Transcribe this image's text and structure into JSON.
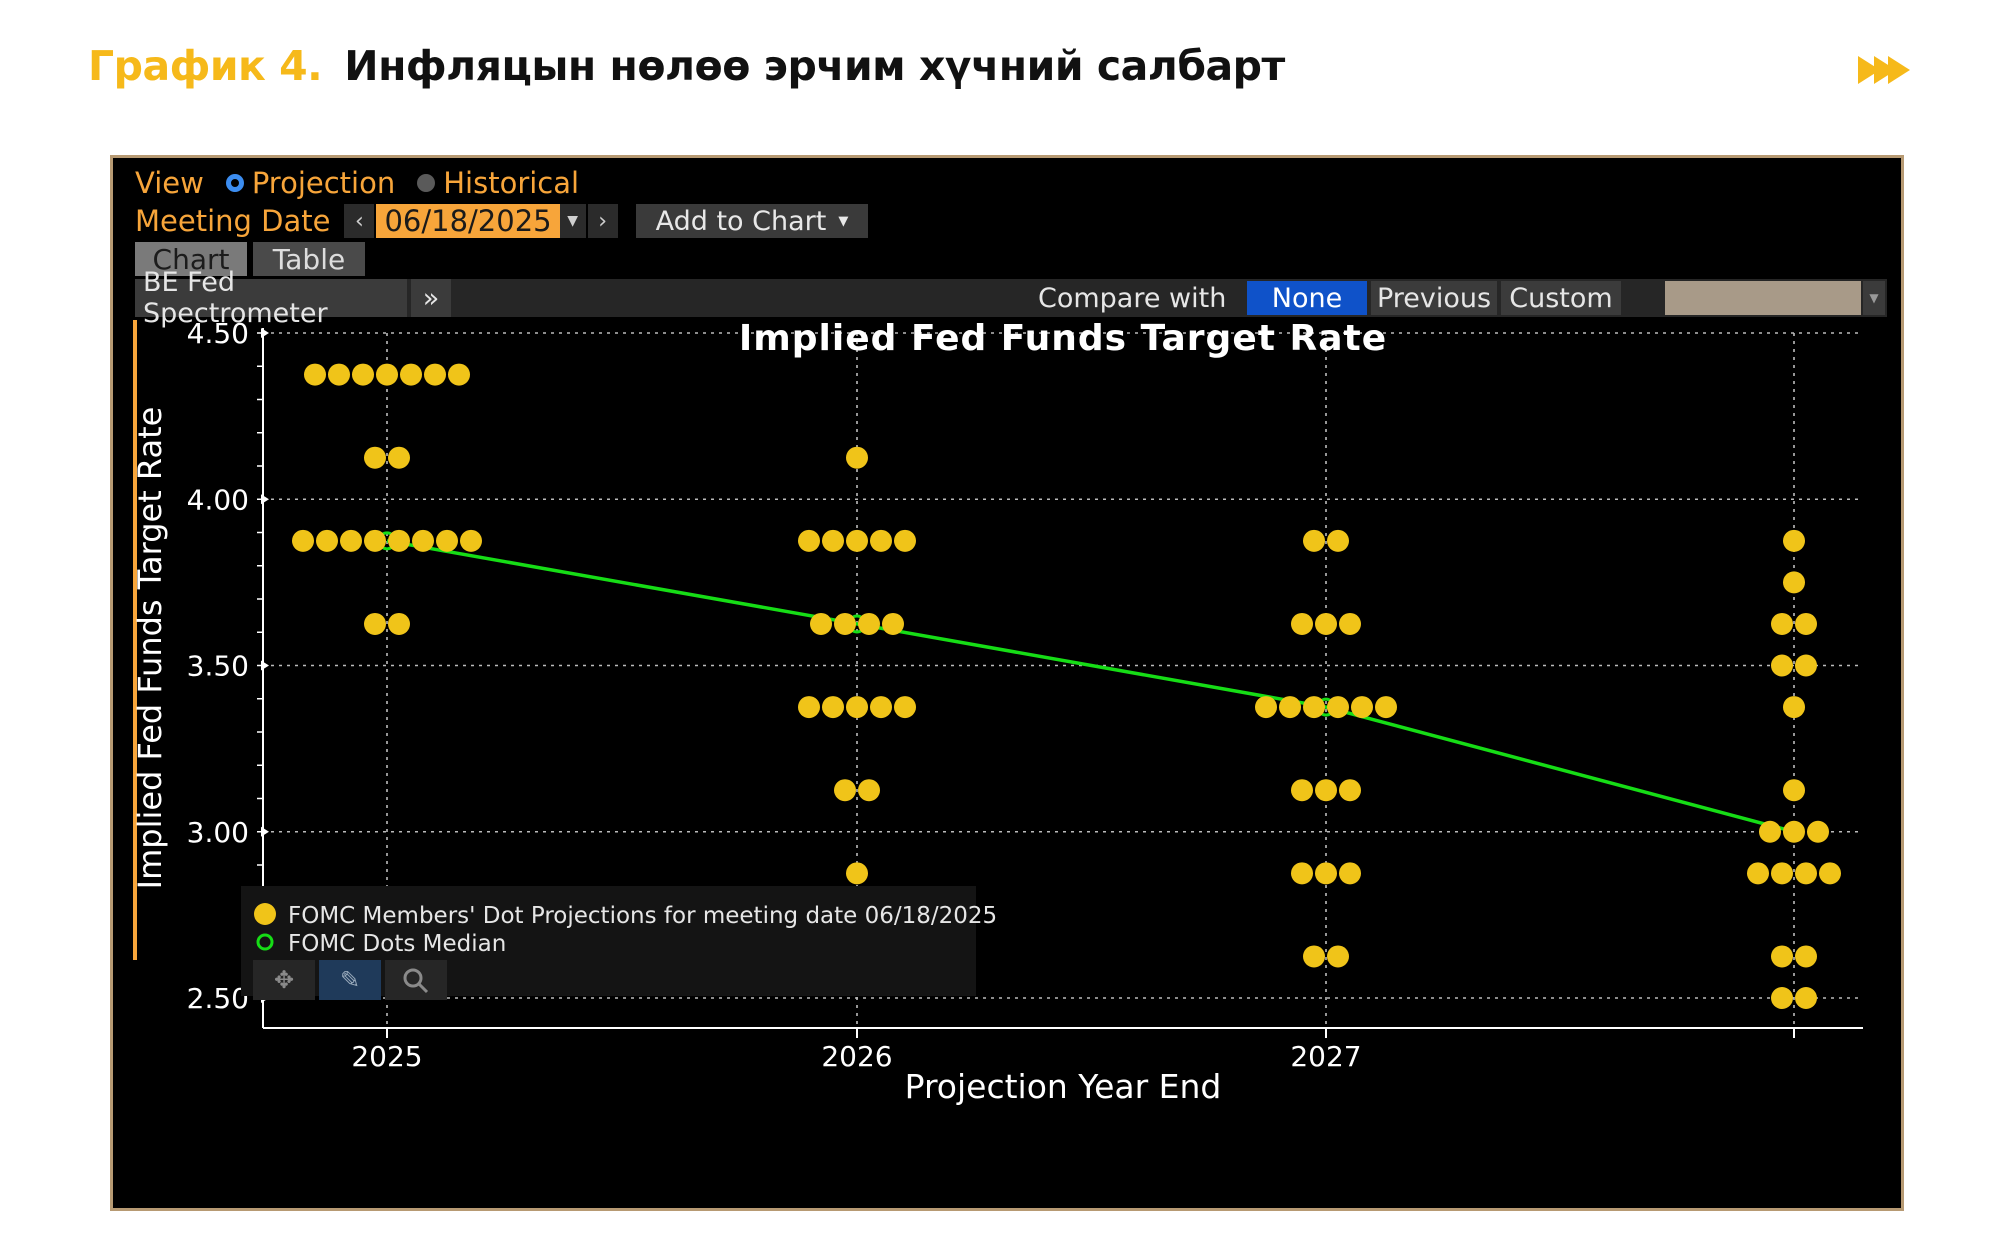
{
  "heading": {
    "number": "График 4.",
    "title": "Инфляцын нөлөө эрчим хүчний салбарт"
  },
  "terminal": {
    "view_label": "View",
    "view_options": [
      "Projection",
      "Historical"
    ],
    "meeting_date_label": "Meeting Date",
    "meeting_date": "06/18/2025",
    "add_to_chart": "Add to Chart",
    "tabs": [
      "Chart",
      "Table"
    ],
    "function_name": "BE Fed Spectrometer",
    "compare_label": "Compare with",
    "compare_options": [
      "None",
      "Previous",
      "Custom"
    ],
    "compare_selected": "None"
  },
  "colors": {
    "dot": "#f0c419",
    "median": "#16dd16",
    "accent": "#f7a53a",
    "selected": "#0f52c9"
  },
  "chart_data": {
    "type": "scatter",
    "title": "Implied Fed Funds Target Rate",
    "xlabel": "Projection Year End",
    "ylabel": "Implied Fed Funds Target Rate",
    "x_categories": [
      "2025",
      "2026",
      "2027",
      ""
    ],
    "ylim": [
      2.5,
      4.5
    ],
    "y_ticks": [
      "4.50",
      "4.00",
      "3.50",
      "3.00",
      "2.50"
    ],
    "grid": true,
    "legend_position": "bottom-left",
    "legend": [
      "FOMC Members' Dot Projections for meeting date 06/18/2025",
      "FOMC Dots Median"
    ],
    "series": [
      {
        "name": "FOMC Members' Dot Projections for meeting date 06/18/2025",
        "points": [
          {
            "x": 0,
            "y": 4.375,
            "count": 7
          },
          {
            "x": 0,
            "y": 4.125,
            "count": 2
          },
          {
            "x": 0,
            "y": 3.875,
            "count": 8
          },
          {
            "x": 0,
            "y": 3.625,
            "count": 2
          },
          {
            "x": 1,
            "y": 4.125,
            "count": 1
          },
          {
            "x": 1,
            "y": 3.875,
            "count": 5
          },
          {
            "x": 1,
            "y": 3.625,
            "count": 4
          },
          {
            "x": 1,
            "y": 3.375,
            "count": 5
          },
          {
            "x": 1,
            "y": 3.125,
            "count": 2
          },
          {
            "x": 1,
            "y": 2.875,
            "count": 1
          },
          {
            "x": 1,
            "y": 2.625,
            "count": 1
          },
          {
            "x": 2,
            "y": 3.875,
            "count": 2
          },
          {
            "x": 2,
            "y": 3.625,
            "count": 3
          },
          {
            "x": 2,
            "y": 3.375,
            "count": 6
          },
          {
            "x": 2,
            "y": 3.125,
            "count": 3
          },
          {
            "x": 2,
            "y": 2.875,
            "count": 3
          },
          {
            "x": 2,
            "y": 2.625,
            "count": 2
          },
          {
            "x": 3,
            "y": 3.875,
            "count": 1
          },
          {
            "x": 3,
            "y": 3.75,
            "count": 1
          },
          {
            "x": 3,
            "y": 3.625,
            "count": 2
          },
          {
            "x": 3,
            "y": 3.5,
            "count": 2
          },
          {
            "x": 3,
            "y": 3.375,
            "count": 1
          },
          {
            "x": 3,
            "y": 3.125,
            "count": 1
          },
          {
            "x": 3,
            "y": 3.0,
            "count": 3
          },
          {
            "x": 3,
            "y": 2.875,
            "count": 4
          },
          {
            "x": 3,
            "y": 2.625,
            "count": 2
          },
          {
            "x": 3,
            "y": 2.5,
            "count": 2
          }
        ]
      },
      {
        "name": "FOMC Dots Median",
        "values": [
          3.875,
          3.625,
          3.375,
          3.0
        ]
      }
    ]
  }
}
